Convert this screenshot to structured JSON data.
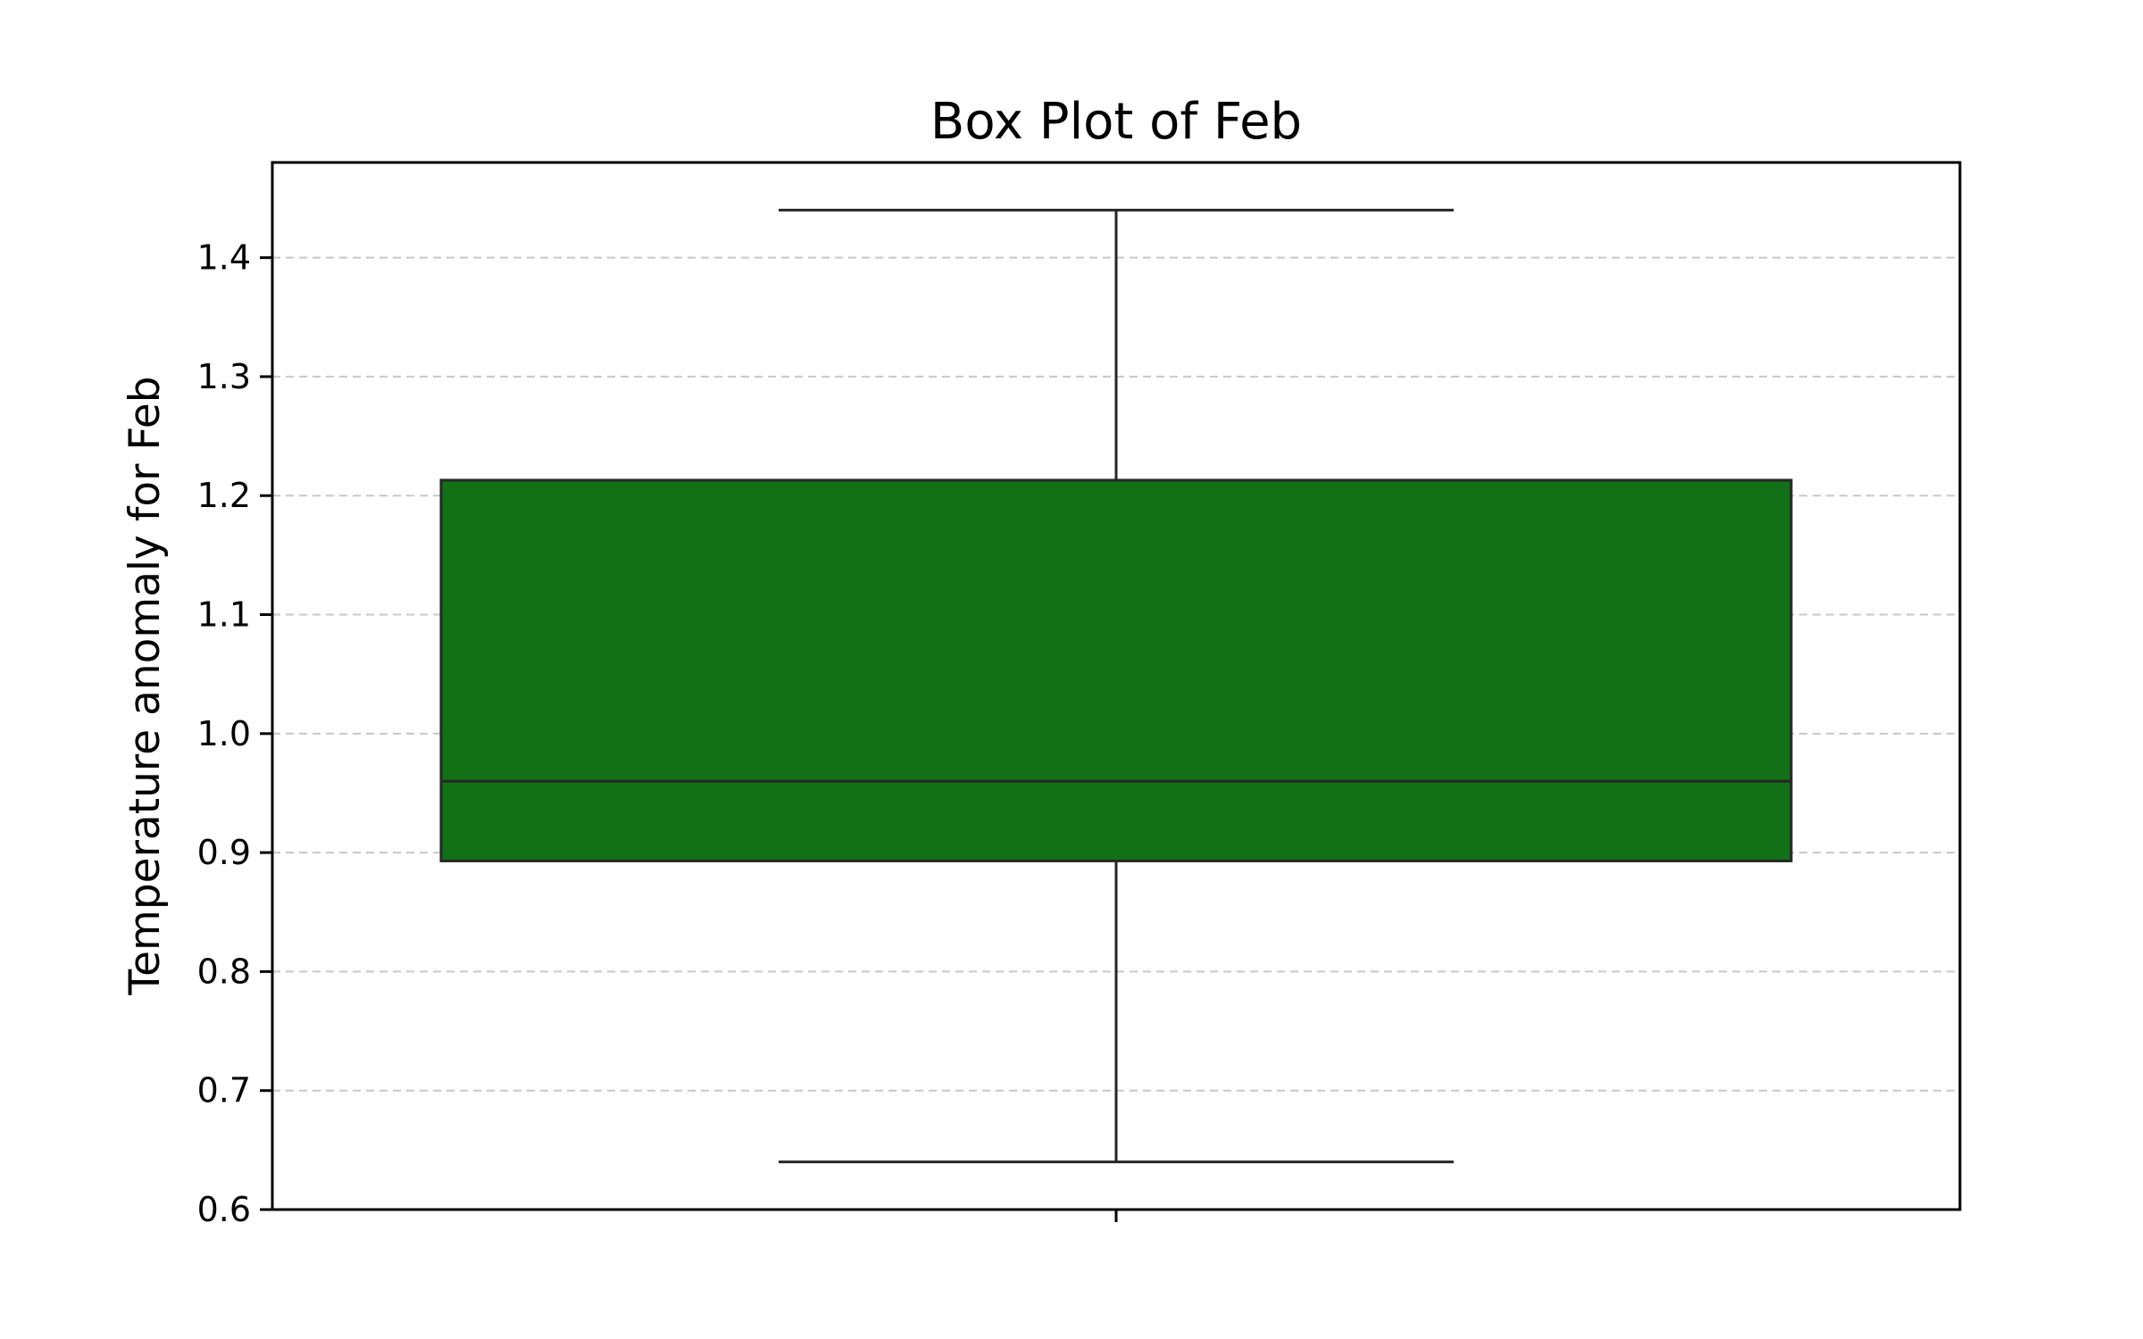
{
  "chart_data": {
    "type": "box",
    "title": "Box Plot of Feb",
    "xlabel": "",
    "ylabel": "Temperature anomaly for Feb",
    "ylim": [
      0.6,
      1.48
    ],
    "yticks": [
      "0.6",
      "0.7",
      "0.8",
      "0.9",
      "1.0",
      "1.1",
      "1.2",
      "1.3",
      "1.4"
    ],
    "grid": "y-dashed",
    "box": {
      "whisker_low": 0.64,
      "q1": 0.893,
      "median": 0.96,
      "q3": 1.213,
      "whisker_high": 1.44
    },
    "colors": {
      "box_fill": "#127016",
      "line": "#262626",
      "grid": "#c8c8c8"
    }
  }
}
